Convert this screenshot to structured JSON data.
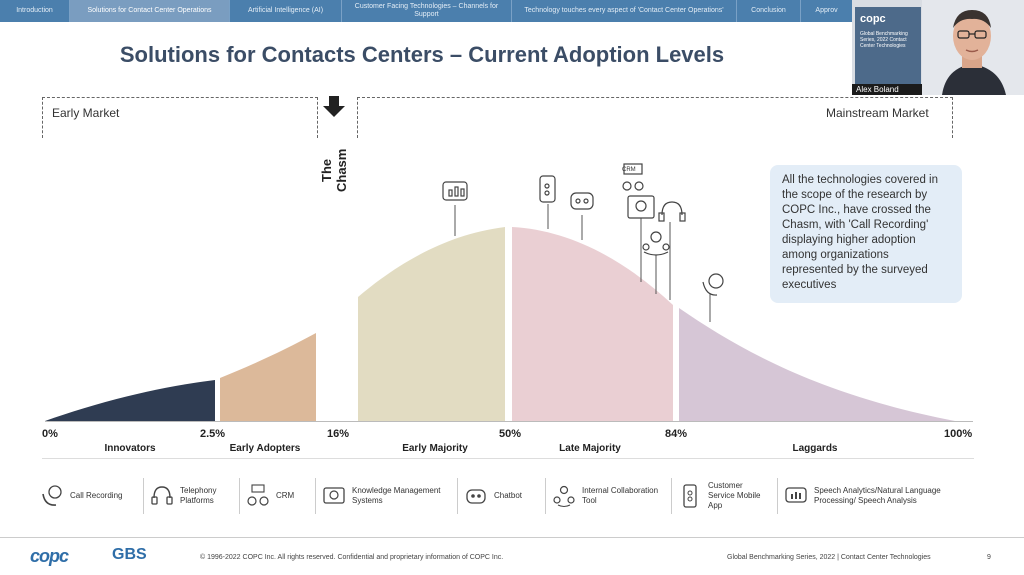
{
  "nav": {
    "tabs": [
      {
        "label": "Introduction"
      },
      {
        "label": "Solutions for Contact Center Operations"
      },
      {
        "label": "Artificial Intelligence (AI)"
      },
      {
        "label": "Customer Facing Technologies – Channels for Support"
      },
      {
        "label": "Technology touches every aspect of 'Contact Center Operations'"
      },
      {
        "label": "Conclusion"
      },
      {
        "label": "Approv"
      }
    ]
  },
  "title": "Solutions for Contacts Centers – Current Adoption Levels",
  "markets": {
    "early": "Early Market",
    "mainstream": "Mainstream Market",
    "chasm": "The Chasm"
  },
  "percentages": {
    "p0": "0%",
    "p2": "2.5%",
    "p16": "16%",
    "p50": "50%",
    "p84": "84%",
    "p100": "100%"
  },
  "segments": {
    "innovators": "Innovators",
    "early_adopters": "Early Adopters",
    "early_majority": "Early Majority",
    "late_majority": "Late Majority",
    "laggards": "Laggards"
  },
  "info_box": "All the technologies covered in the scope of the research by COPC Inc., have crossed the Chasm, with 'Call Recording' displaying higher adoption among organizations represented by the surveyed executives",
  "legend": [
    {
      "label": "Call Recording",
      "icon": "call-recording-icon"
    },
    {
      "label": "Telephony Platforms",
      "icon": "headset-icon"
    },
    {
      "label": "CRM",
      "icon": "crm-icon",
      "icon_text": "CRM"
    },
    {
      "label": "Knowledge Management Systems",
      "icon": "knowledge-icon"
    },
    {
      "label": "Chatbot",
      "icon": "chatbot-icon"
    },
    {
      "label": "Internal Collaboration Tool",
      "icon": "collaboration-icon"
    },
    {
      "label": "Customer Service Mobile App",
      "icon": "mobile-app-icon"
    },
    {
      "label": "Speech Analytics/Natural Language Processing/ Speech Analysis",
      "icon": "speech-analytics-icon"
    }
  ],
  "footer": {
    "logo1": "copc",
    "logo2": "GBS",
    "copyright": "© 1996-2022 COPC Inc. All rights reserved. Confidential and proprietary information of COPC Inc.",
    "series": "Global Benchmarking Series, 2022  |  Contact Center Technologies",
    "page": "9"
  },
  "video": {
    "name": "Alex Boland",
    "card_logo": "copc",
    "card_text": "Global Benchmarking Series, 2022 Contact Center Technologies"
  },
  "colors": {
    "nav": "#4b7fad",
    "innovators": "#2f3c52",
    "early_adopters": "#dcb99a",
    "early_majority": "#e2dcc2",
    "late_majority": "#eacfd3",
    "laggards": "#d6c6d6",
    "title": "#3b4d66"
  }
}
